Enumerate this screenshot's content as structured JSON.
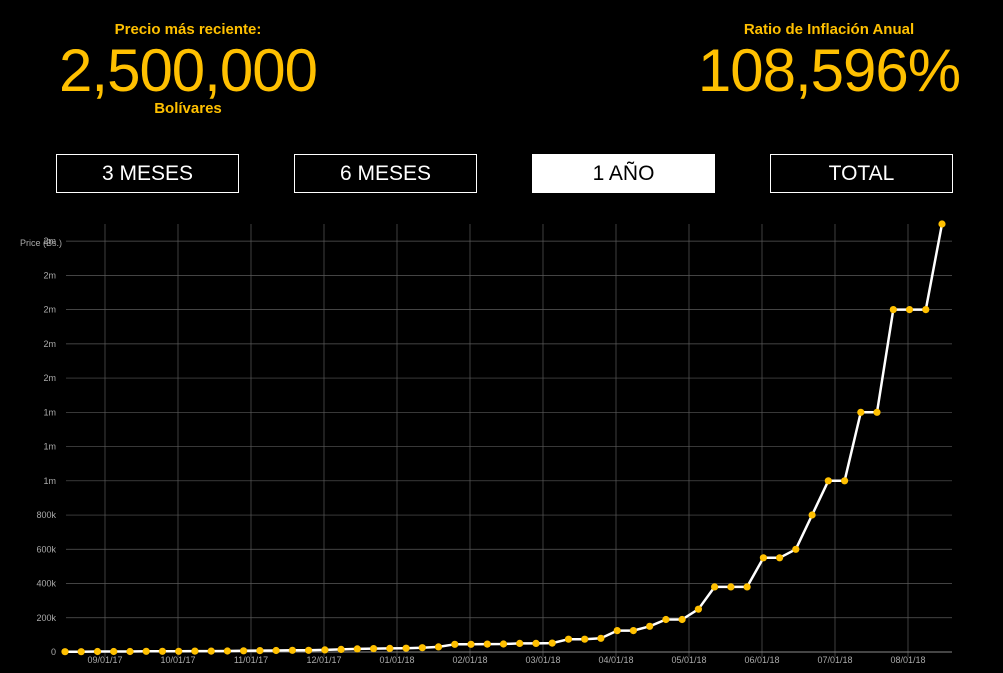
{
  "header": {
    "latest_price": {
      "label": "Precio más reciente:",
      "value": "2,500,000",
      "unit": "Bolívares"
    },
    "inflation": {
      "label": "Ratio de Inflación Anual",
      "value": "108,596%"
    }
  },
  "range_buttons": [
    {
      "label": "3 MESES",
      "active": false
    },
    {
      "label": "6 MESES",
      "active": false
    },
    {
      "label": "1 AÑO",
      "active": true
    },
    {
      "label": "TOTAL",
      "active": false
    }
  ],
  "colors": {
    "accent": "#FFC000",
    "line": "#FFFFFF",
    "background": "#000000",
    "grid": "#5A5A5A",
    "tick_text": "#AAAAAA"
  },
  "chart_data": {
    "type": "line",
    "ylabel": "Price (Bs.)",
    "ylim": [
      0,
      2500000
    ],
    "y_ticks": [
      {
        "value": 0,
        "label": "0"
      },
      {
        "value": 200000,
        "label": "200k"
      },
      {
        "value": 400000,
        "label": "400k"
      },
      {
        "value": 600000,
        "label": "600k"
      },
      {
        "value": 800000,
        "label": "800k"
      },
      {
        "value": 1000000,
        "label": "1m"
      },
      {
        "value": 1200000,
        "label": "1m"
      },
      {
        "value": 1400000,
        "label": "1m"
      },
      {
        "value": 1600000,
        "label": "2m"
      },
      {
        "value": 1800000,
        "label": "2m"
      },
      {
        "value": 2000000,
        "label": "2m"
      },
      {
        "value": 2200000,
        "label": "2m"
      },
      {
        "value": 2400000,
        "label": "2m"
      }
    ],
    "x_ticks": [
      "09/01/17",
      "10/01/17",
      "11/01/17",
      "12/01/17",
      "01/01/18",
      "02/01/18",
      "03/01/18",
      "04/01/18",
      "05/01/18",
      "06/01/18",
      "07/01/18",
      "08/01/18"
    ],
    "series": [
      {
        "values": [
          2000,
          2000,
          3000,
          3000,
          3000,
          4000,
          4000,
          4000,
          5000,
          5000,
          6000,
          7000,
          8000,
          9000,
          10000,
          10000,
          12000,
          15000,
          18000,
          20000,
          21000,
          22000,
          25000,
          30000,
          45000,
          45000,
          46000,
          47000,
          50000,
          50000,
          52000,
          75000,
          75000,
          80000,
          125000,
          125000,
          150000,
          190000,
          190000,
          250000,
          380000,
          380000,
          380000,
          550000,
          550000,
          600000,
          800000,
          1000000,
          1000000,
          1400000,
          1400000,
          2000000,
          2000000,
          2000000,
          2500000
        ]
      }
    ]
  }
}
